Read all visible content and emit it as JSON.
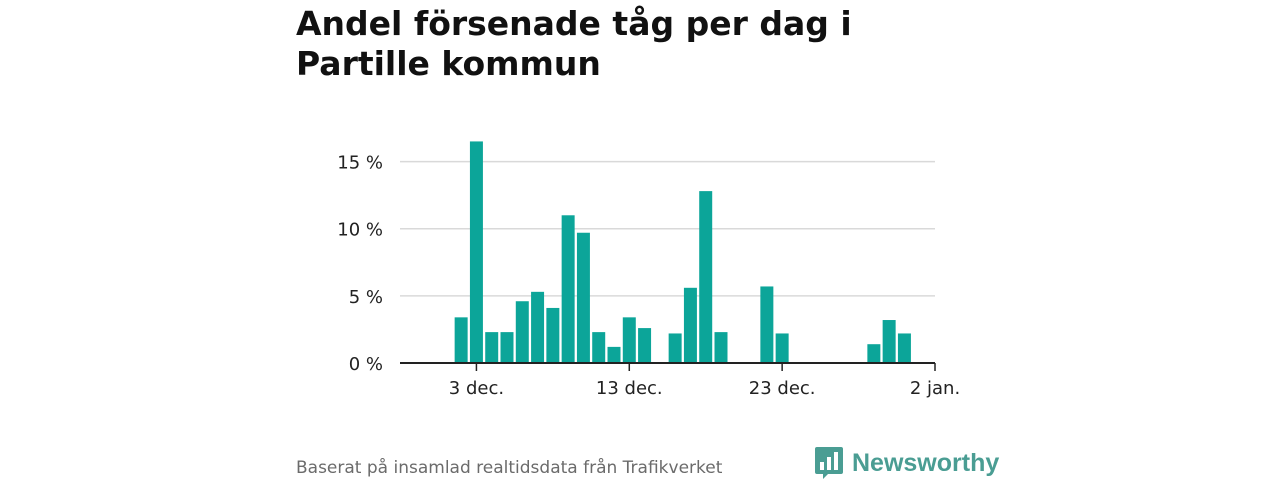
{
  "header": {
    "title": "Andel försenade tåg per dag i Partille kommun"
  },
  "footer": {
    "source": "Baserat på insamlad realtidsdata från Trafikverket",
    "brand": "Newsworthy",
    "brand_icon": "bar-chart-bubble-icon"
  },
  "colors": {
    "bar": "#0ca599",
    "grid": "#d9d9d9",
    "axis": "#222222",
    "brand": "#4a9d93"
  },
  "chart_data": {
    "type": "bar",
    "title": "Andel försenade tåg per dag i Partille kommun",
    "xlabel": "",
    "ylabel": "",
    "x_axis": {
      "type": "date",
      "start": "2023-11-28",
      "end": "2024-01-02"
    },
    "ylim": [
      0,
      17.5
    ],
    "y_ticks": [
      {
        "value": 0,
        "label": "0 %"
      },
      {
        "value": 5,
        "label": "5 %"
      },
      {
        "value": 10,
        "label": "10 %"
      },
      {
        "value": 15,
        "label": "15 %"
      }
    ],
    "x_ticks": [
      {
        "date": "2023-12-03",
        "label": "3 dec."
      },
      {
        "date": "2023-12-13",
        "label": "13 dec."
      },
      {
        "date": "2023-12-23",
        "label": "23 dec."
      },
      {
        "date": "2024-01-02",
        "label": "2 jan."
      }
    ],
    "grid": true,
    "bars": [
      {
        "date": "2023-12-02",
        "value": 3.4
      },
      {
        "date": "2023-12-03",
        "value": 16.5
      },
      {
        "date": "2023-12-04",
        "value": 2.3
      },
      {
        "date": "2023-12-05",
        "value": 2.3
      },
      {
        "date": "2023-12-06",
        "value": 4.6
      },
      {
        "date": "2023-12-07",
        "value": 5.3
      },
      {
        "date": "2023-12-08",
        "value": 4.1
      },
      {
        "date": "2023-12-09",
        "value": 11.0
      },
      {
        "date": "2023-12-10",
        "value": 9.7
      },
      {
        "date": "2023-12-11",
        "value": 2.3
      },
      {
        "date": "2023-12-12",
        "value": 1.2
      },
      {
        "date": "2023-12-13",
        "value": 3.4
      },
      {
        "date": "2023-12-14",
        "value": 2.6
      },
      {
        "date": "2023-12-16",
        "value": 2.2
      },
      {
        "date": "2023-12-17",
        "value": 5.6
      },
      {
        "date": "2023-12-18",
        "value": 12.8
      },
      {
        "date": "2023-12-19",
        "value": 2.3
      },
      {
        "date": "2023-12-22",
        "value": 5.7
      },
      {
        "date": "2023-12-23",
        "value": 2.2
      },
      {
        "date": "2023-12-29",
        "value": 1.4
      },
      {
        "date": "2023-12-30",
        "value": 3.2
      },
      {
        "date": "2023-12-31",
        "value": 2.2
      }
    ]
  }
}
